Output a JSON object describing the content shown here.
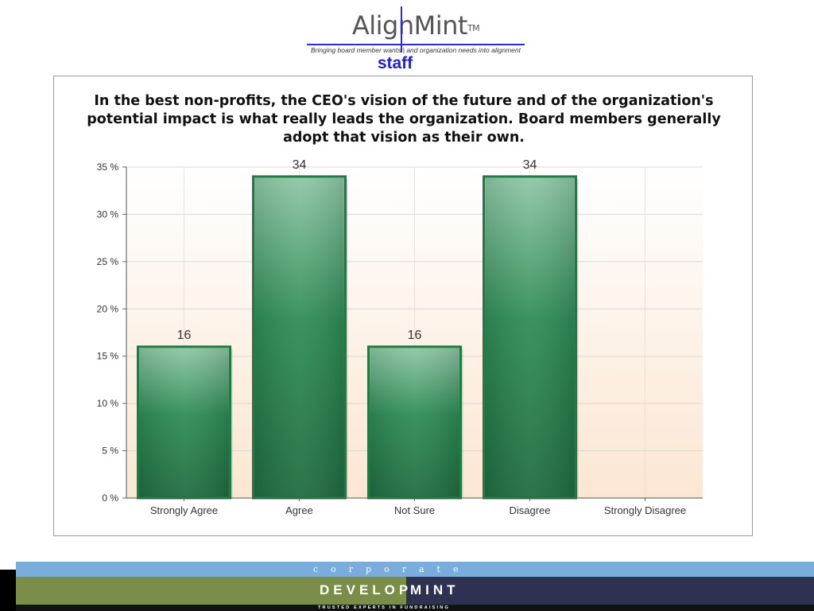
{
  "header": {
    "brand_left": "Align",
    "brand_right": "Mint",
    "brand_tm": "TM",
    "tagline": "Bringing board member wants | and organization needs into alignment",
    "subtitle": "staff"
  },
  "chart_data": {
    "type": "bar",
    "title": "In the best non-profits, the CEO's vision of the future and of the organization's potential impact is what really leads the organization. Board members generally adopt that vision as their own.",
    "categories": [
      "Strongly Agree",
      "Agree",
      "Not Sure",
      "Disagree",
      "Strongly Disagree"
    ],
    "values": [
      16,
      34,
      16,
      34,
      0
    ],
    "data_labels": [
      "16",
      "34",
      "16",
      "34",
      ""
    ],
    "yticks": [
      "0 %",
      "5 %",
      "10 %",
      "15 %",
      "20 %",
      "25 %",
      "30 %",
      "35 %"
    ],
    "ylim": [
      0,
      35
    ],
    "xlabel": "",
    "ylabel": "",
    "grid": true,
    "bar_color": "#2e8b57",
    "bar_border_color": "#1f7a45"
  },
  "footer": {
    "corporate": "corporate",
    "develop": "DEVELOP",
    "mint": "MINT",
    "tagline": "TRUSTED EXPERTS IN FUNDRAISING",
    "colors": {
      "top": "#7aaddc",
      "left": "#7a8e4a",
      "right": "#2f3150"
    }
  }
}
